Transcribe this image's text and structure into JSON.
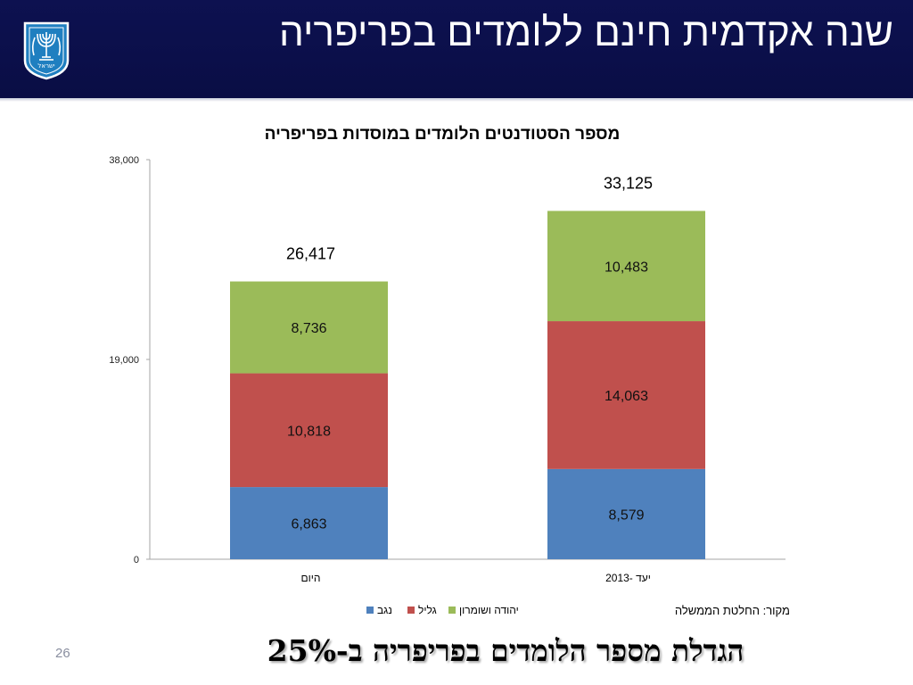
{
  "header": {
    "title": "שנה אקדמית חינם ללומדים בפריפריה",
    "emblem_lettering": "ישראל"
  },
  "chart_data": {
    "type": "bar",
    "stacked": true,
    "title": "מספר הסטודנטים הלומדים במוסדות בפריפריה",
    "categories": [
      "היום",
      "יעד -2013"
    ],
    "series": [
      {
        "name": "נגב",
        "color": "#4f81bd",
        "values": [
          6863,
          8579
        ],
        "labels": [
          "6,863",
          "8,579"
        ]
      },
      {
        "name": "גליל",
        "color": "#c0504d",
        "values": [
          10818,
          14063
        ],
        "labels": [
          "10,818",
          "14,063"
        ]
      },
      {
        "name": "יהודה ושומרון",
        "color": "#9bbb59",
        "values": [
          8736,
          10483
        ],
        "labels": [
          "8,736",
          "10,483"
        ]
      }
    ],
    "totals": [
      "26,417",
      "33,125"
    ],
    "y_ticks": [
      {
        "value": 0,
        "label": "0"
      },
      {
        "value": 19000,
        "label": "19,000"
      },
      {
        "value": 38000,
        "label": "38,000"
      }
    ],
    "ylim": [
      0,
      38000
    ],
    "legend_position": "bottom",
    "source_note": "מקור: החלטת הממשלה"
  },
  "footer": {
    "page_number": "26",
    "headline": "הגדלת מספר הלומדים בפריפריה ב-25%"
  },
  "colors": {
    "header_bg": "#0b0f4a",
    "emblem_blue": "#1f7fc0"
  }
}
